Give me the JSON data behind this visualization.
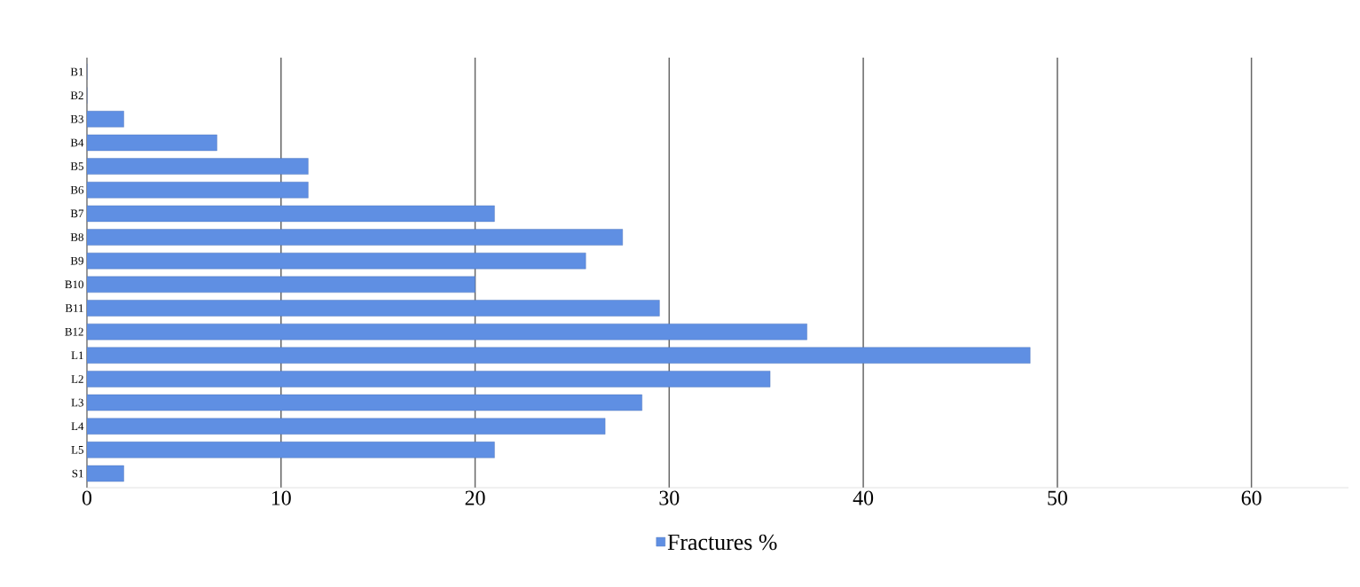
{
  "chart_data": {
    "type": "bar",
    "orientation": "horizontal",
    "categories": [
      "B1",
      "B2",
      "B3",
      "B4",
      "B5",
      "B6",
      "B7",
      "B8",
      "B9",
      "B10",
      "B11",
      "B12",
      "L1",
      "L2",
      "L3",
      "L4",
      "L5",
      "S1"
    ],
    "series": [
      {
        "name": "Fractures %",
        "color": "#5f8fe3",
        "values": [
          0,
          0,
          1.9,
          6.7,
          11.4,
          11.4,
          21,
          27.6,
          25.7,
          20,
          29.5,
          37.1,
          48.6,
          35.2,
          28.6,
          26.7,
          21,
          1.9
        ]
      }
    ],
    "xlim": [
      0,
      65
    ],
    "xticks": [
      0,
      10,
      20,
      30,
      40,
      50,
      60
    ],
    "grid": "x",
    "legend": "bottom"
  }
}
